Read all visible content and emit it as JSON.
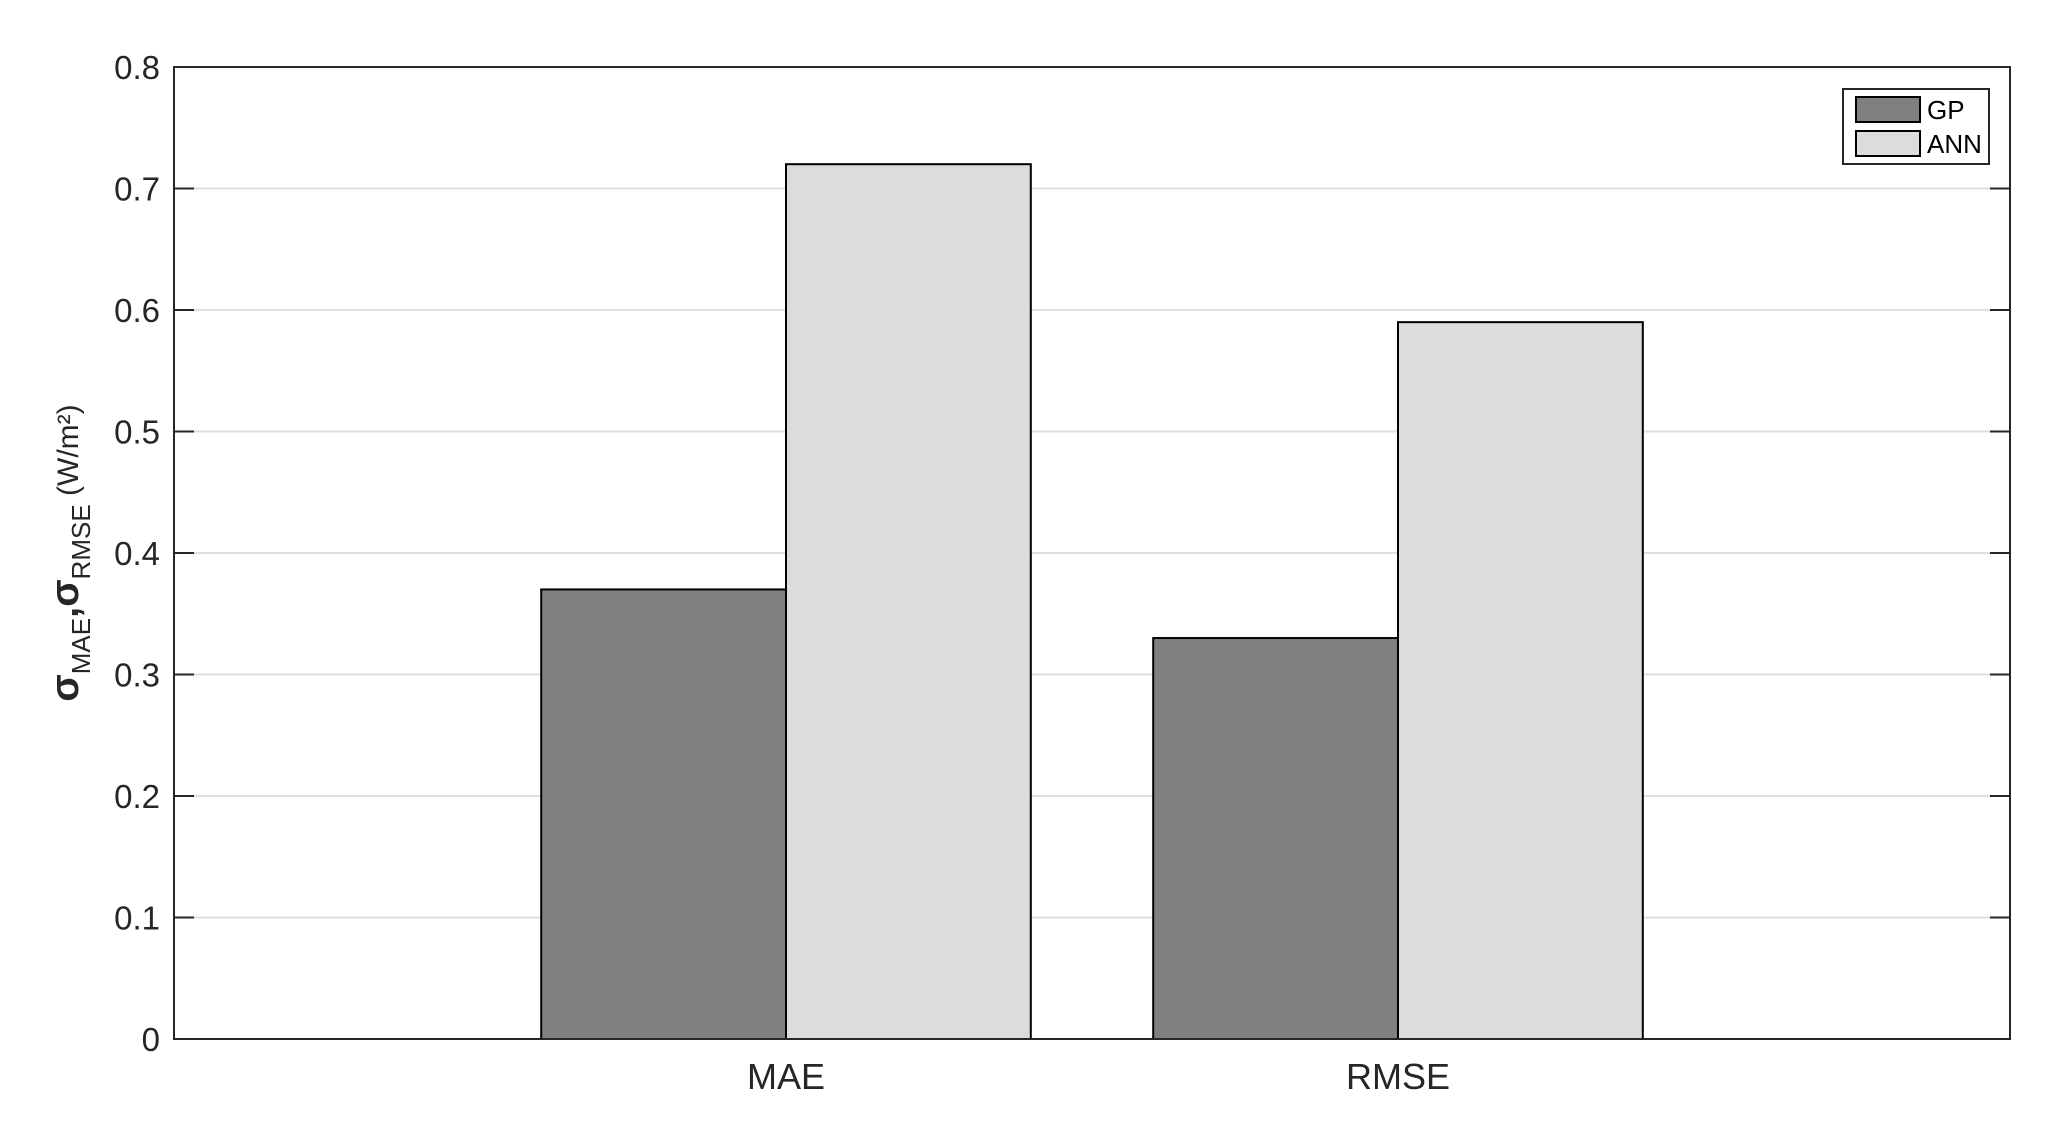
{
  "chart_data": {
    "type": "bar",
    "title": "",
    "xlabel": "",
    "ylabel": {
      "main": "σ",
      "sub1": "MAE",
      "sep": ",σ",
      "sub2": "RMSE",
      "unit": " (W/m²)"
    },
    "categories": [
      "MAE",
      "RMSE"
    ],
    "series": [
      {
        "name": "GP",
        "values": [
          0.37,
          0.33
        ],
        "color": "#808080"
      },
      {
        "name": "ANN",
        "values": [
          0.72,
          0.59
        ],
        "color": "#dcdcdc"
      }
    ],
    "ylim": [
      0,
      0.8
    ],
    "xlim": [
      0,
      3
    ],
    "yticks": [
      "0",
      "0.1",
      "0.2",
      "0.3",
      "0.4",
      "0.5",
      "0.6",
      "0.7",
      "0.8"
    ],
    "grid": "horizontal",
    "legend": "top-right"
  }
}
